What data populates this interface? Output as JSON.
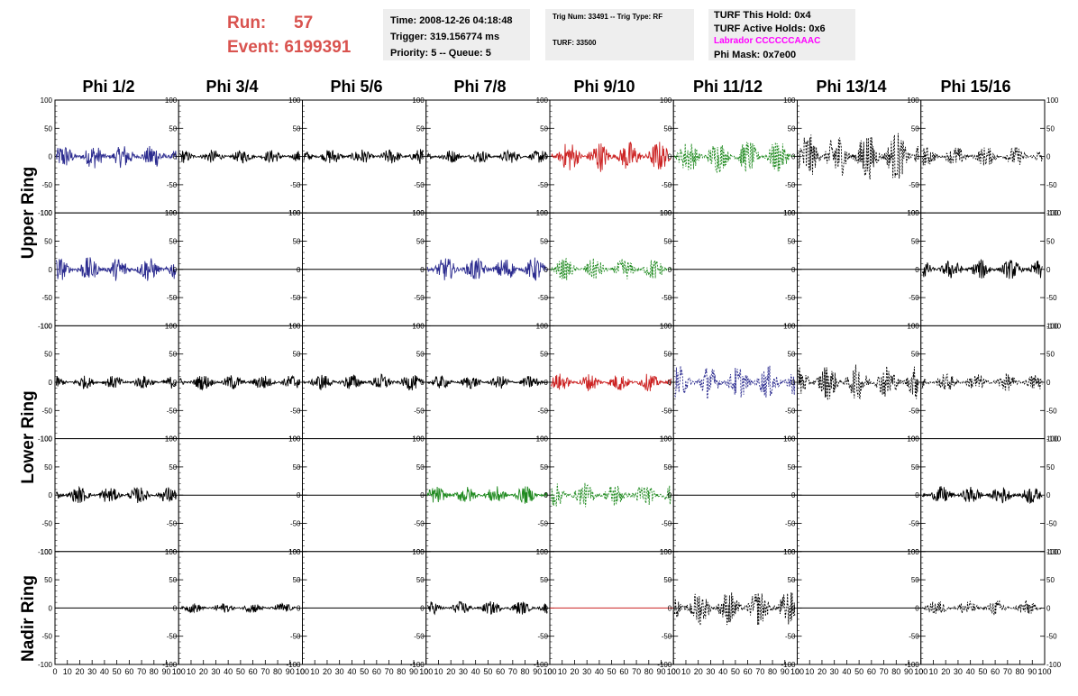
{
  "header": {
    "run_label": "Run:",
    "run_value": "57",
    "event_label": "Event:",
    "event_value": "6199391",
    "time": "Time: 2008-12-26 04:18:48",
    "trigger": "Trigger: 319.156774 ms",
    "priority": "Priority: 5 -- Queue: 5",
    "trig_num": "Trig Num: 33491 -- Trig Type: RF",
    "turf": "TURF: 33500",
    "turf_this_hold": "TURF This Hold: 0x4",
    "turf_active_holds": "TURF Active Holds: 0x6",
    "labrador": "Labrador CCCCCCAAAC",
    "phi_mask": "Phi Mask: 0x7e00"
  },
  "columns": [
    "Phi 1/2",
    "Phi 3/4",
    "Phi 5/6",
    "Phi 7/8",
    "Phi 9/10",
    "Phi 11/12",
    "Phi 13/14",
    "Phi 15/16"
  ],
  "rings": [
    "Upper Ring",
    "Lower Ring",
    "Nadir Ring"
  ],
  "colors": {
    "black": "#000000",
    "blue": "#2b2b8f",
    "red": "#cc2222",
    "green": "#1f8a1f",
    "labrador": "#ff00ff",
    "run": "#d9534f",
    "box": "#eeeeee"
  },
  "chart_data": {
    "type": "line",
    "xlim": [
      0,
      100
    ],
    "ylim": [
      -100,
      100
    ],
    "y_ticks": [
      -100,
      -50,
      0,
      50,
      100
    ],
    "x_ticks": [
      0,
      10,
      20,
      30,
      40,
      50,
      60,
      70,
      80,
      90,
      100
    ],
    "x_tick_labels": [
      "0",
      "10",
      "20",
      "30",
      "40",
      "50",
      "60",
      "70",
      "80",
      "90",
      "100"
    ],
    "panel_rows": [
      {
        "ring": "Upper Ring",
        "panels": [
          {
            "color": "blue",
            "amp": 22,
            "dashed": false,
            "flat": false
          },
          {
            "color": "black",
            "amp": 12,
            "dashed": false,
            "flat": false
          },
          {
            "color": "black",
            "amp": 14,
            "dashed": false,
            "flat": false
          },
          {
            "color": "black",
            "amp": 12,
            "dashed": false,
            "flat": false
          },
          {
            "color": "red",
            "amp": 28,
            "dashed": false,
            "flat": false
          },
          {
            "color": "green",
            "amp": 30,
            "dashed": true,
            "flat": false
          },
          {
            "color": "black",
            "amp": 45,
            "dashed": true,
            "flat": false
          },
          {
            "color": "black",
            "amp": 18,
            "dashed": true,
            "flat": false
          }
        ]
      },
      {
        "ring": "Upper Ring",
        "panels": [
          {
            "color": "blue",
            "amp": 22,
            "dashed": false,
            "flat": false
          },
          {
            "color": "black",
            "amp": 0,
            "dashed": false,
            "flat": true
          },
          {
            "color": "black",
            "amp": 0,
            "dashed": false,
            "flat": true
          },
          {
            "color": "blue",
            "amp": 22,
            "dashed": false,
            "flat": false
          },
          {
            "color": "green",
            "amp": 20,
            "dashed": true,
            "flat": false
          },
          {
            "color": "black",
            "amp": 0,
            "dashed": false,
            "flat": true
          },
          {
            "color": "black",
            "amp": 0,
            "dashed": false,
            "flat": true
          },
          {
            "color": "black",
            "amp": 18,
            "dashed": false,
            "flat": false
          }
        ]
      },
      {
        "ring": "Lower Ring",
        "panels": [
          {
            "color": "black",
            "amp": 12,
            "dashed": false,
            "flat": false
          },
          {
            "color": "black",
            "amp": 14,
            "dashed": false,
            "flat": false
          },
          {
            "color": "black",
            "amp": 15,
            "dashed": false,
            "flat": false
          },
          {
            "color": "black",
            "amp": 12,
            "dashed": false,
            "flat": false
          },
          {
            "color": "red",
            "amp": 16,
            "dashed": false,
            "flat": false
          },
          {
            "color": "blue",
            "amp": 30,
            "dashed": true,
            "flat": false
          },
          {
            "color": "black",
            "amp": 32,
            "dashed": true,
            "flat": false
          },
          {
            "color": "black",
            "amp": 16,
            "dashed": true,
            "flat": false
          }
        ]
      },
      {
        "ring": "Lower Ring",
        "panels": [
          {
            "color": "black",
            "amp": 15,
            "dashed": false,
            "flat": false
          },
          {
            "color": "black",
            "amp": 0,
            "dashed": false,
            "flat": true
          },
          {
            "color": "black",
            "amp": 0,
            "dashed": false,
            "flat": true
          },
          {
            "color": "green",
            "amp": 16,
            "dashed": false,
            "flat": false
          },
          {
            "color": "green",
            "amp": 22,
            "dashed": true,
            "flat": false
          },
          {
            "color": "black",
            "amp": 0,
            "dashed": false,
            "flat": true
          },
          {
            "color": "black",
            "amp": 0,
            "dashed": false,
            "flat": true
          },
          {
            "color": "black",
            "amp": 16,
            "dashed": false,
            "flat": false
          }
        ]
      },
      {
        "ring": "Nadir Ring",
        "panels": [
          {
            "color": "black",
            "amp": 0,
            "dashed": false,
            "flat": true
          },
          {
            "color": "black",
            "amp": 9,
            "dashed": false,
            "flat": false
          },
          {
            "color": "black",
            "amp": 0,
            "dashed": false,
            "flat": true
          },
          {
            "color": "black",
            "amp": 12,
            "dashed": false,
            "flat": false
          },
          {
            "color": "red",
            "amp": 0,
            "dashed": false,
            "flat": true
          },
          {
            "color": "black",
            "amp": 32,
            "dashed": true,
            "flat": false
          },
          {
            "color": "black",
            "amp": 0,
            "dashed": false,
            "flat": true
          },
          {
            "color": "black",
            "amp": 14,
            "dashed": true,
            "flat": false
          }
        ]
      }
    ]
  }
}
